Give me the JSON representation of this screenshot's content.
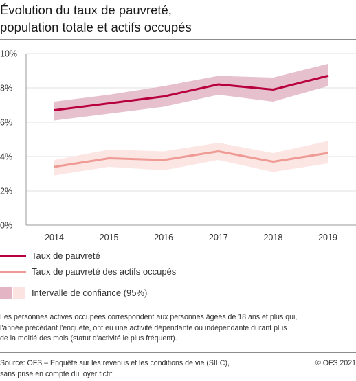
{
  "title_line1": "Évolution du taux de pauvreté,",
  "title_line2": "population totale et actifs occupés",
  "legend": {
    "series1": "Taux de pauvreté",
    "series2": "Taux de pauvreté des actifs occupés",
    "ci": "Intervalle de confiance (95%)"
  },
  "note": {
    "line1": "Les personnes actives occupées correspondent aux personnes âgées de 18 ans et plus qui,",
    "line2": "l'année précédant l'enquête, ont eu une activité dépendante ou indépendante durant plus",
    "line3": "de la moitié des mois (statut d'activité le plus fréquent)."
  },
  "source": {
    "line1": "Source: OFS – Enquête sur les revenus et les conditions de vie (SILC),",
    "line2": "sans prise en compte du loyer fictif"
  },
  "copyright": "© OFS 2021",
  "colors": {
    "series1": "#b8003f",
    "series1_band": "#e3b5c4",
    "series2": "#ef9a94",
    "series2_band": "#fbe3e1",
    "grid": "#e0e0e0",
    "axis": "#999999"
  },
  "chart_data": {
    "type": "line",
    "x": [
      "2014",
      "2015",
      "2016",
      "2017",
      "2018",
      "2019"
    ],
    "ylim": [
      0,
      10
    ],
    "yticks": [
      "0%",
      "2%",
      "4%",
      "6%",
      "8%",
      "10%"
    ],
    "grid": true,
    "legend_position": "bottom",
    "series": [
      {
        "name": "Taux de pauvreté",
        "values": [
          6.7,
          7.1,
          7.5,
          8.2,
          7.9,
          8.7
        ],
        "ci_low": [
          6.1,
          6.5,
          6.9,
          7.6,
          7.2,
          8.1
        ],
        "ci_high": [
          7.2,
          7.6,
          8.1,
          8.7,
          8.6,
          9.4
        ]
      },
      {
        "name": "Taux de pauvreté des actifs occupés",
        "values": [
          3.4,
          3.9,
          3.8,
          4.3,
          3.7,
          4.2
        ],
        "ci_low": [
          2.9,
          3.4,
          3.2,
          3.8,
          3.1,
          3.6
        ],
        "ci_high": [
          3.8,
          4.4,
          4.3,
          4.8,
          4.2,
          4.9
        ]
      }
    ]
  }
}
